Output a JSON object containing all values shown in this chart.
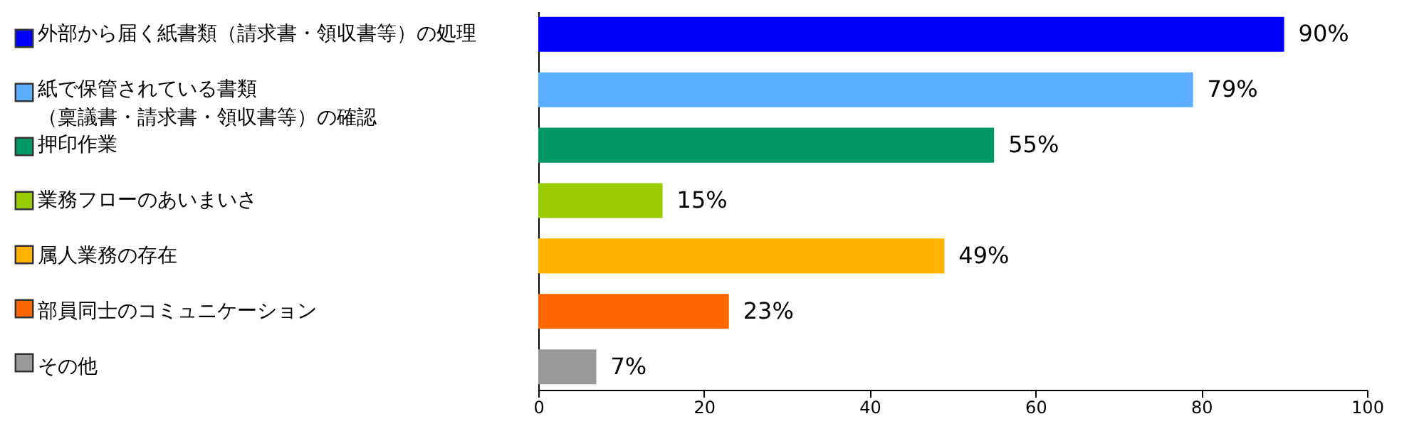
{
  "chart_data": {
    "type": "bar",
    "orientation": "horizontal",
    "categories": [
      "外部から届く紙書類（請求書・領収書等）の処理",
      "紙で保管されている書類（稟議書・請求書・領収書等）の確認",
      "押印作業",
      "業務フローのあいまいさ",
      "属人業務の存在",
      "部員同士のコミュニケーション",
      "その他"
    ],
    "values": [
      90,
      79,
      55,
      15,
      49,
      23,
      7
    ],
    "colors": [
      "#0000ff",
      "#5aadff",
      "#009966",
      "#99cc00",
      "#ffb300",
      "#ff6600",
      "#999999"
    ],
    "value_labels": [
      "90%",
      "79%",
      "55%",
      "15%",
      "49%",
      "23%",
      "7%"
    ],
    "xlim": [
      0,
      100
    ],
    "xticks": [
      0,
      20,
      40,
      60,
      80,
      100
    ],
    "grid": false
  }
}
